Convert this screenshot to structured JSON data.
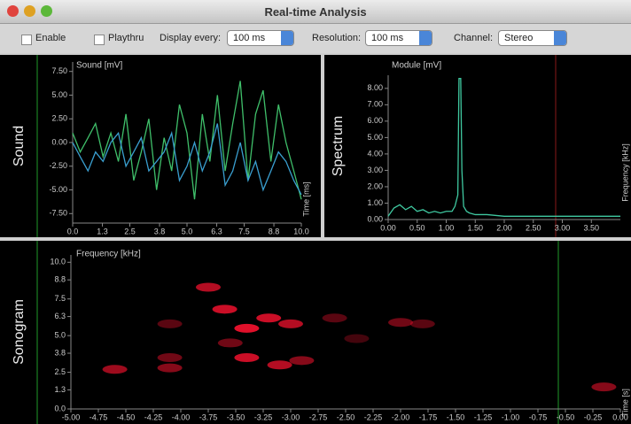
{
  "window": {
    "title": "Real-time Analysis"
  },
  "toolbar": {
    "enable": "Enable",
    "playthru": "Playthru",
    "display_label": "Display every:",
    "display_value": "100 ms",
    "resolution_label": "Resolution:",
    "resolution_value": "100 ms",
    "channel_label": "Channel:",
    "channel_value": "Stereo"
  },
  "chart_data": [
    {
      "type": "line",
      "panel_label": "Sound",
      "y_label": "Sound [mV]",
      "x_label": "Time [ms]",
      "x": [
        0,
        0.33,
        0.67,
        1,
        1.33,
        1.67,
        2,
        2.33,
        2.67,
        3,
        3.33,
        3.67,
        4,
        4.33,
        4.67,
        5,
        5.33,
        5.67,
        6,
        6.33,
        6.67,
        7,
        7.33,
        7.67,
        8,
        8.33,
        8.67,
        9,
        9.33,
        9.67,
        10
      ],
      "series": [
        {
          "color": "#3fbf6a",
          "values": [
            1,
            -1,
            0.5,
            2,
            -1.5,
            1,
            -2,
            3,
            -4,
            -1,
            2.5,
            -5,
            0.5,
            -3,
            4,
            1,
            -6,
            3,
            -2,
            5,
            -3,
            2,
            6.5,
            -4,
            3,
            5.5,
            -2,
            4,
            0,
            -3,
            -6
          ]
        },
        {
          "color": "#3a9fd0",
          "values": [
            0,
            -1.5,
            -3,
            -1,
            -2,
            0,
            1,
            -2.5,
            -1,
            0.5,
            -3,
            -2,
            -1,
            1,
            -4,
            -2.5,
            0,
            -3,
            -1,
            2,
            -4.5,
            -3,
            0,
            -4,
            -2,
            -5,
            -3,
            -1,
            -2,
            -4,
            -5.5
          ]
        }
      ],
      "xlim": [
        0,
        10
      ],
      "ylim": [
        -8.5,
        8.5
      ],
      "xticks": [
        {
          "value": 0,
          "label": "0.0"
        },
        1.3,
        2.5,
        3.8,
        {
          "value": 5,
          "label": "5.0"
        },
        6.3,
        7.5,
        8.8,
        {
          "value": 10,
          "label": "10.0"
        }
      ],
      "yticks": [
        {
          "value": 7.5,
          "label": "7.50"
        },
        {
          "value": 5,
          "label": "5.00"
        },
        {
          "value": 2.5,
          "label": "2.50"
        },
        {
          "value": 0,
          "label": "0.00"
        },
        {
          "value": -2.5,
          "label": "-2.50"
        },
        {
          "value": -5,
          "label": "-5.00"
        },
        {
          "value": -7.5,
          "label": "-7.50"
        }
      ]
    },
    {
      "type": "line",
      "panel_label": "Spectrum",
      "y_label": "Module [mV]",
      "x_label": "Frequency [kHz]",
      "x": [
        0,
        0.1,
        0.2,
        0.3,
        0.4,
        0.5,
        0.6,
        0.7,
        0.8,
        0.9,
        1.0,
        1.1,
        1.15,
        1.2,
        1.22,
        1.25,
        1.27,
        1.3,
        1.35,
        1.4,
        1.5,
        1.7,
        2.0,
        2.5,
        3.0,
        3.5,
        4.0
      ],
      "series": [
        {
          "color": "#3fc8a0",
          "values": [
            0.2,
            0.7,
            0.9,
            0.6,
            0.8,
            0.5,
            0.6,
            0.4,
            0.5,
            0.4,
            0.5,
            0.5,
            0.8,
            1.5,
            8.6,
            8.6,
            3,
            0.8,
            0.5,
            0.4,
            0.3,
            0.3,
            0.2,
            0.2,
            0.2,
            0.2,
            0.2
          ]
        }
      ],
      "xlim": [
        0,
        4
      ],
      "ylim": [
        0,
        8.8
      ],
      "xticks": [
        {
          "value": 0,
          "label": "0.00"
        },
        {
          "value": 0.5,
          "label": "0.50"
        },
        {
          "value": 1,
          "label": "1.00"
        },
        {
          "value": 1.5,
          "label": "1.50"
        },
        {
          "value": 2,
          "label": "2.00"
        },
        {
          "value": 2.5,
          "label": "2.50"
        },
        {
          "value": 3,
          "label": "3.00"
        },
        {
          "value": 3.5,
          "label": "3.50"
        }
      ],
      "yticks": [
        {
          "value": 0,
          "label": "0.00"
        },
        {
          "value": 1,
          "label": "1.00"
        },
        {
          "value": 2,
          "label": "2.00"
        },
        {
          "value": 3,
          "label": "3.00"
        },
        {
          "value": 4,
          "label": "4.00"
        },
        {
          "value": 5,
          "label": "5.00"
        },
        {
          "value": 6,
          "label": "6.00"
        },
        {
          "value": 7,
          "label": "7.00"
        },
        {
          "value": 8,
          "label": "8.00"
        }
      ]
    },
    {
      "type": "heatmap",
      "panel_label": "Sonogram",
      "y_label": "Frequency [kHz]",
      "x_label": "Time [s]",
      "color": "#e0102a",
      "x": [
        -3.75,
        -3.6,
        -3.4,
        -3.2,
        -3.0,
        -3.4,
        -3.1,
        -2.9,
        -4.6,
        -4.1,
        -4.1,
        -4.1,
        -2.6,
        -2.0,
        -1.8,
        -0.15,
        -3.55,
        -2.4
      ],
      "y": [
        8.3,
        6.8,
        5.5,
        6.2,
        5.8,
        3.5,
        3.0,
        3.3,
        2.7,
        2.8,
        3.5,
        5.8,
        6.2,
        5.9,
        5.8,
        1.5,
        4.5,
        4.8
      ],
      "values": [
        0.8,
        0.9,
        1,
        0.9,
        0.8,
        0.9,
        0.8,
        0.6,
        0.7,
        0.6,
        0.5,
        0.4,
        0.4,
        0.5,
        0.4,
        0.6,
        0.5,
        0.3
      ],
      "xlim": [
        -5,
        0
      ],
      "ylim": [
        0,
        10.5
      ],
      "xticks": [
        {
          "value": -5,
          "label": "-5.00"
        },
        -4.75,
        {
          "value": -4.5,
          "label": "-4.50"
        },
        -4.25,
        {
          "value": -4,
          "label": "-4.00"
        },
        -3.75,
        {
          "value": -3.5,
          "label": "-3.50"
        },
        -3.25,
        {
          "value": -3,
          "label": "-3.00"
        },
        -2.75,
        {
          "value": -2.5,
          "label": "-2.50"
        },
        -2.25,
        {
          "value": -2,
          "label": "-2.00"
        },
        -1.75,
        {
          "value": -1.5,
          "label": "-1.50"
        },
        -1.25,
        {
          "value": -1,
          "label": "-1.00"
        },
        -0.75,
        {
          "value": -0.5,
          "label": "-0.50"
        },
        -0.25,
        {
          "value": 0,
          "label": "0.00"
        }
      ],
      "yticks": [
        {
          "value": 0,
          "label": "0.0"
        },
        1.3,
        2.5,
        3.8,
        {
          "value": 5,
          "label": "5.0"
        },
        6.3,
        7.5,
        8.8,
        {
          "value": 10,
          "label": "10.0"
        }
      ]
    }
  ]
}
